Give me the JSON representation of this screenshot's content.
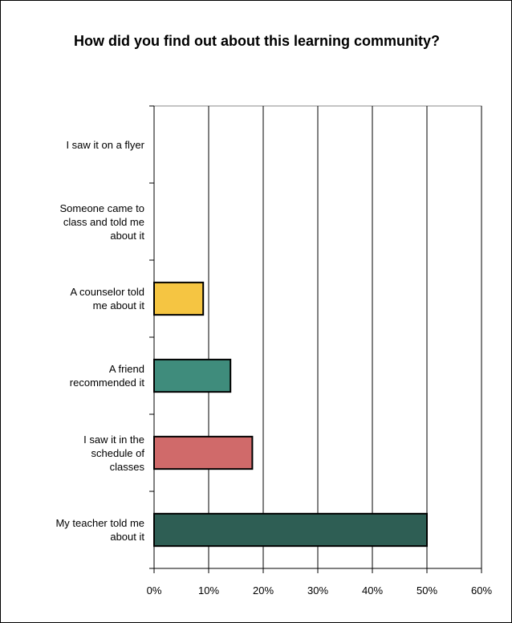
{
  "chart_data": {
    "type": "bar",
    "orientation": "horizontal",
    "title": "How did you find out about this learning community?",
    "categories": [
      "I saw it on a flyer",
      "Someone came to class and told me about it",
      "A counselor told me about it",
      "A friend recommended it",
      "I saw it in the schedule of classes",
      "My teacher told me about it"
    ],
    "category_lines": [
      [
        "I saw it on a flyer"
      ],
      [
        "Someone came to",
        "class and told me",
        "about it"
      ],
      [
        "A counselor told",
        "me about it"
      ],
      [
        "A friend",
        "recommended it"
      ],
      [
        "I saw it in the",
        "schedule of",
        "classes"
      ],
      [
        "My teacher told me",
        "about it"
      ]
    ],
    "values": [
      0,
      0,
      9,
      14,
      18,
      50
    ],
    "colors": [
      "#3b8f7c",
      "#3b8f7c",
      "#f5c542",
      "#3f8c7c",
      "#d06a6a",
      "#2e5e54"
    ],
    "xlim": [
      0,
      60
    ],
    "xticks": [
      "0%",
      "10%",
      "20%",
      "30%",
      "40%",
      "50%",
      "60%"
    ],
    "grid": true,
    "legend": "none"
  }
}
